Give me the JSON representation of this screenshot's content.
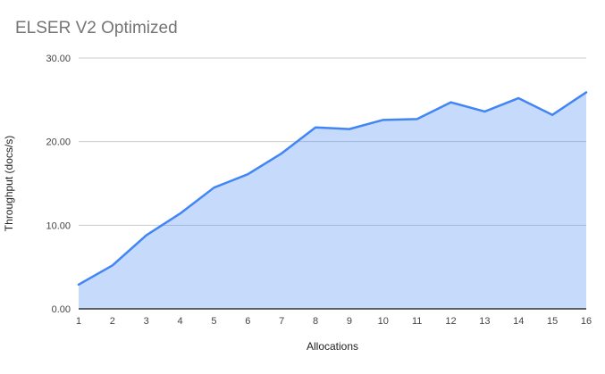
{
  "chart_data": {
    "type": "area",
    "title": "ELSER V2 Optimized",
    "xlabel": "Allocations",
    "ylabel": "Throughput (docs/s)",
    "x": [
      1,
      2,
      3,
      4,
      5,
      6,
      7,
      8,
      9,
      10,
      11,
      12,
      13,
      14,
      15,
      16
    ],
    "series": [
      {
        "name": "Throughput",
        "values": [
          2.9,
          5.2,
          8.8,
          11.4,
          14.5,
          16.1,
          18.6,
          21.7,
          21.5,
          22.6,
          22.7,
          24.7,
          23.6,
          25.2,
          23.2,
          25.9
        ]
      }
    ],
    "xlim": [
      1,
      16
    ],
    "ylim": [
      0,
      30
    ],
    "yticks": [
      0,
      10,
      20,
      30
    ],
    "ytick_labels": [
      "0.00",
      "10.00",
      "20.00",
      "30.00"
    ],
    "grid": true,
    "legend": "none",
    "colors": {
      "line": "#4285f4",
      "fill": "rgba(66,133,244,0.3)",
      "grid": "#cccccc",
      "axis_line": "#333333",
      "tick_label": "#444444",
      "axis_title": "#222222",
      "title_text": "#757575"
    }
  }
}
